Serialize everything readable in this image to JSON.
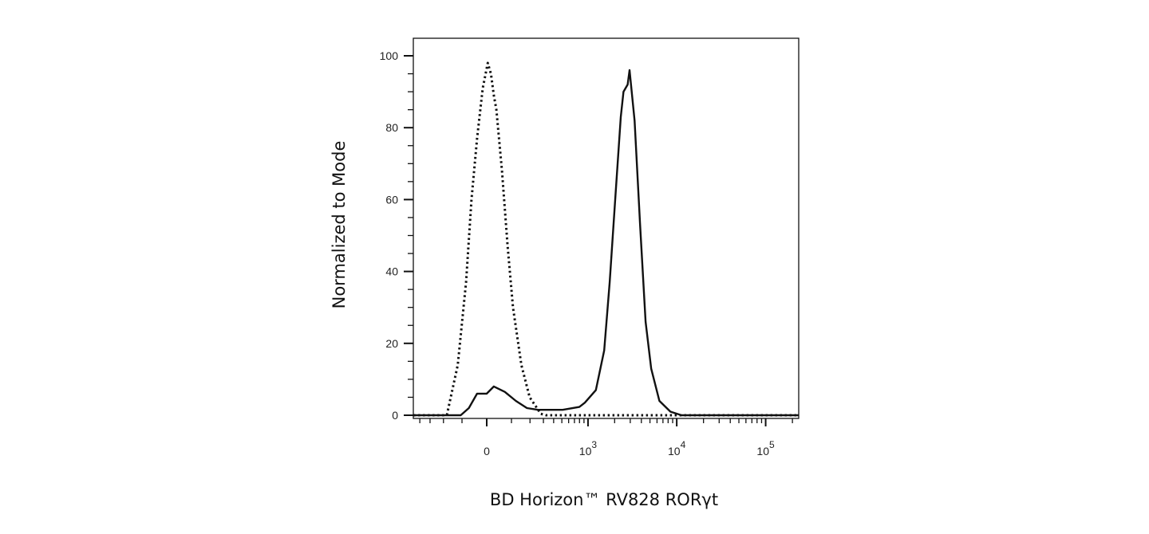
{
  "chart_data": {
    "type": "line",
    "title": "",
    "xlabel": "BD Horizon™ RV828 RORγt",
    "ylabel": "Normalized to Mode",
    "x_scale": "biexponential",
    "xlim": [
      -477,
      235000
    ],
    "ylim": [
      0,
      100
    ],
    "grid": false,
    "legend": "none",
    "y_ticks": [
      {
        "value": 0,
        "label": "0"
      },
      {
        "value": 20,
        "label": "20"
      },
      {
        "value": 40,
        "label": "40"
      },
      {
        "value": 60,
        "label": "60"
      },
      {
        "value": 80,
        "label": "80"
      },
      {
        "value": 100,
        "label": "100"
      }
    ],
    "x_ticks": [
      {
        "value": 0,
        "base": "0",
        "exp": ""
      },
      {
        "value": 1000,
        "base": "10",
        "exp": "3"
      },
      {
        "value": 10000,
        "base": "10",
        "exp": "4"
      },
      {
        "value": 100000,
        "base": "10",
        "exp": "5"
      }
    ],
    "series": [
      {
        "style": "dotted",
        "color": "#111111",
        "x": [
          -477,
          -179,
          -120,
          -82,
          -59,
          -37,
          -15,
          4,
          16,
          27,
          37,
          59,
          83,
          107,
          149,
          198,
          278,
          324,
          235000
        ],
        "y": [
          0,
          0,
          14,
          37,
          60,
          77,
          91,
          98,
          95,
          89,
          85,
          68,
          47,
          30,
          14,
          5,
          0.4,
          0,
          0
        ]
      },
      {
        "style": "solid",
        "color": "#111111",
        "x": [
          -477,
          -106,
          -70,
          -37,
          -15,
          0,
          27,
          71,
          121,
          181,
          256,
          512,
          797,
          921,
          1229,
          1524,
          1759,
          2029,
          2346,
          2517,
          2803,
          2949,
          3358,
          3869,
          4468,
          5154,
          6380,
          8483,
          11315,
          235000
        ],
        "y": [
          0,
          0,
          2,
          6,
          6,
          6,
          8,
          6.5,
          4,
          2,
          1.5,
          1.5,
          2.3,
          3.5,
          7,
          18,
          37,
          60,
          83,
          90,
          92,
          96,
          82,
          53,
          26,
          13,
          4,
          1,
          0,
          0
        ]
      }
    ]
  }
}
